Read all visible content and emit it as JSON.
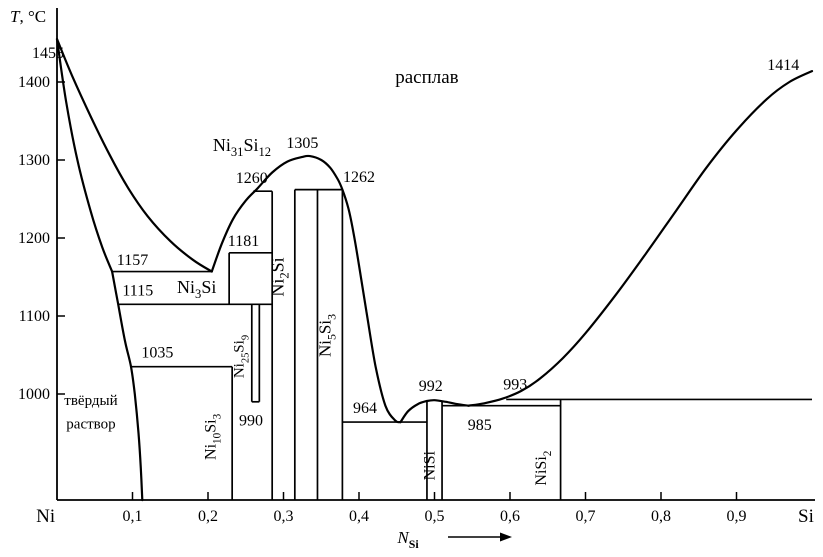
{
  "chart_data": {
    "type": "line",
    "kind": "binary-phase-diagram",
    "system": "Ni-Si",
    "y_axis": {
      "title_parts": [
        {
          "t": "T",
          "i": true
        },
        {
          "t": ", °C"
        }
      ],
      "ticks": [
        {
          "v": 1000,
          "label": "1000"
        },
        {
          "v": 1100,
          "label": "1100"
        },
        {
          "v": 1200,
          "label": "1200"
        },
        {
          "v": 1300,
          "label": "1300"
        },
        {
          "v": 1400,
          "label": "1400"
        }
      ],
      "bottom_T": 864
    },
    "x_axis": {
      "title_parts": [
        {
          "t": "N",
          "i": true
        },
        {
          "t": "Si",
          "sub": true,
          "b": true
        }
      ],
      "arrow": true,
      "end_labels": [
        {
          "t": "Ni",
          "n": -0.015
        },
        {
          "t": "Si",
          "n": 0.992
        }
      ],
      "ticks": [
        {
          "v": 0.1,
          "label": "0,1"
        },
        {
          "v": 0.2,
          "label": "0,2"
        },
        {
          "v": 0.3,
          "label": "0,3"
        },
        {
          "v": 0.4,
          "label": "0,4"
        },
        {
          "v": 0.5,
          "label": "0,5"
        },
        {
          "v": 0.6,
          "label": "0,6"
        },
        {
          "v": 0.7,
          "label": "0,7"
        },
        {
          "v": 0.8,
          "label": "0,8"
        },
        {
          "v": 0.9,
          "label": "0,9"
        }
      ]
    },
    "curves": [
      {
        "name": "liquidus-left",
        "points": [
          [
            0,
            1455
          ],
          [
            0.02,
            1408
          ],
          [
            0.045,
            1355
          ],
          [
            0.07,
            1306
          ],
          [
            0.095,
            1263
          ],
          [
            0.12,
            1228
          ],
          [
            0.15,
            1196
          ],
          [
            0.18,
            1172
          ],
          [
            0.205,
            1157
          ]
        ]
      },
      {
        "name": "solidus-left",
        "points": [
          [
            0,
            1455
          ],
          [
            0.012,
            1375
          ],
          [
            0.027,
            1300
          ],
          [
            0.045,
            1233
          ],
          [
            0.06,
            1188
          ],
          [
            0.073,
            1157
          ]
        ]
      },
      {
        "name": "solvus-left",
        "points": [
          [
            0.073,
            1157
          ],
          [
            0.081,
            1115
          ],
          [
            0.09,
            1068
          ],
          [
            0.098,
            1035
          ],
          [
            0.103,
            1000
          ],
          [
            0.108,
            950
          ],
          [
            0.111,
            905
          ],
          [
            0.113,
            864
          ]
        ]
      },
      {
        "name": "liquidus-dome",
        "points": [
          [
            0.205,
            1157
          ],
          [
            0.218,
            1192
          ],
          [
            0.233,
            1224
          ],
          [
            0.25,
            1248
          ],
          [
            0.266,
            1264
          ],
          [
            0.285,
            1284
          ],
          [
            0.305,
            1298
          ],
          [
            0.325,
            1304
          ],
          [
            0.335,
            1305
          ],
          [
            0.35,
            1300
          ],
          [
            0.362,
            1290
          ],
          [
            0.372,
            1275
          ],
          [
            0.378,
            1262
          ],
          [
            0.386,
            1238
          ],
          [
            0.393,
            1205
          ],
          [
            0.4,
            1165
          ],
          [
            0.41,
            1105
          ],
          [
            0.422,
            1035
          ],
          [
            0.435,
            985
          ],
          [
            0.448,
            966
          ],
          [
            0.455,
            964
          ]
        ]
      },
      {
        "name": "liquidus-nisi",
        "points": [
          [
            0.455,
            964
          ],
          [
            0.465,
            978
          ],
          [
            0.478,
            987
          ],
          [
            0.49,
            991
          ],
          [
            0.5,
            992
          ],
          [
            0.515,
            990
          ],
          [
            0.53,
            987
          ],
          [
            0.545,
            985
          ]
        ]
      },
      {
        "name": "liquidus-right",
        "points": [
          [
            0.545,
            985
          ],
          [
            0.565,
            988
          ],
          [
            0.59,
            994
          ],
          [
            0.615,
            1004
          ],
          [
            0.64,
            1020
          ],
          [
            0.67,
            1046
          ],
          [
            0.7,
            1078
          ],
          [
            0.74,
            1127
          ],
          [
            0.78,
            1180
          ],
          [
            0.82,
            1235
          ],
          [
            0.86,
            1290
          ],
          [
            0.9,
            1338
          ],
          [
            0.94,
            1378
          ],
          [
            0.97,
            1400
          ],
          [
            1,
            1414
          ]
        ]
      }
    ],
    "isotherms": [
      {
        "T": 1157,
        "n1": 0.073,
        "n2": 0.205
      },
      {
        "T": 1115,
        "n1": 0.081,
        "n2": 0.285
      },
      {
        "T": 1035,
        "n1": 0.098,
        "n2": 0.232
      },
      {
        "T": 1181,
        "n1": 0.228,
        "n2": 0.285
      },
      {
        "T": 1260,
        "n1": 0.26,
        "n2": 0.285
      },
      {
        "T": 1262,
        "n1": 0.315,
        "n2": 0.378
      },
      {
        "T": 990,
        "n1": 0.258,
        "n2": 0.268
      },
      {
        "T": 964,
        "n1": 0.378,
        "n2": 0.49
      },
      {
        "T": 985,
        "n1": 0.51,
        "n2": 0.667
      },
      {
        "T": 993,
        "n1": 0.595,
        "n2": 1.0
      }
    ],
    "compound_lines": [
      {
        "n": 0.228,
        "t1": 1181,
        "t2": 1115
      },
      {
        "n": 0.232,
        "t1": 1035,
        "t2": 864
      },
      {
        "n": 0.258,
        "t1": 1115,
        "t2": 990
      },
      {
        "n": 0.268,
        "t1": 1115,
        "t2": 990
      },
      {
        "n": 0.285,
        "t1": 1260,
        "t2": 864
      },
      {
        "n": 0.315,
        "t1": 1262,
        "t2": 864
      },
      {
        "n": 0.345,
        "t1": 1262,
        "t2": 864
      },
      {
        "n": 0.378,
        "t1": 1262,
        "t2": 864
      },
      {
        "n": 0.49,
        "t1": 991,
        "t2": 864
      },
      {
        "n": 0.51,
        "t1": 990,
        "t2": 864
      },
      {
        "n": 0.667,
        "t1": 993,
        "t2": 864
      }
    ],
    "point_labels": [
      {
        "text": "1455",
        "n": -0.012,
        "t": 1437
      },
      {
        "text": "1414",
        "n": 0.962,
        "t": 1422
      },
      {
        "text": "1157",
        "n": 0.1,
        "t": 1172
      },
      {
        "text": "1115",
        "n": 0.107,
        "t": 1133
      },
      {
        "text": "1035",
        "n": 0.133,
        "t": 1053
      },
      {
        "text": "1181",
        "n": 0.247,
        "t": 1196
      },
      {
        "text": "1260",
        "n": 0.258,
        "t": 1277
      },
      {
        "text": "1305",
        "n": 0.325,
        "t": 1322
      },
      {
        "text": "1262",
        "n": 0.4,
        "t": 1278
      },
      {
        "text": "990",
        "n": 0.257,
        "t": 966
      },
      {
        "text": "964",
        "n": 0.408,
        "t": 982
      },
      {
        "text": "992",
        "n": 0.495,
        "t": 1010
      },
      {
        "text": "985",
        "n": 0.56,
        "t": 960
      },
      {
        "text": "993",
        "n": 0.607,
        "t": 1012
      }
    ],
    "region_labels": [
      {
        "id": "melt",
        "parts": [
          {
            "t": "расплав"
          }
        ],
        "n": 0.49,
        "t": 1405,
        "size": 19
      },
      {
        "id": "solid-solution-line1",
        "parts": [
          {
            "t": "твёрдый"
          }
        ],
        "n": 0.045,
        "t": 992,
        "size": 15
      },
      {
        "id": "solid-solution-line2",
        "parts": [
          {
            "t": "раствор"
          }
        ],
        "n": 0.045,
        "t": 962,
        "size": 15
      },
      {
        "id": "ni3si",
        "parts": [
          {
            "t": "Ni"
          },
          {
            "t": "3",
            "sub": true
          },
          {
            "t": "Si"
          }
        ],
        "n": 0.185,
        "t": 1136,
        "size": 18
      },
      {
        "id": "ni31si12",
        "parts": [
          {
            "t": "Ni"
          },
          {
            "t": "31",
            "sub": true
          },
          {
            "t": "Si"
          },
          {
            "t": "12",
            "sub": true
          }
        ],
        "n": 0.245,
        "t": 1318,
        "size": 18
      },
      {
        "id": "ni2si",
        "parts": [
          {
            "t": "Ni"
          },
          {
            "t": "2",
            "sub": true
          },
          {
            "t": "Si"
          }
        ],
        "n": 0.3,
        "t": 1150,
        "size": 18,
        "rot": true
      },
      {
        "id": "ni5si3",
        "parts": [
          {
            "t": "Ni"
          },
          {
            "t": "5",
            "sub": true
          },
          {
            "t": "Si"
          },
          {
            "t": "3",
            "sub": true
          }
        ],
        "n": 0.362,
        "t": 1075,
        "size": 17,
        "rot": true
      },
      {
        "id": "ni25si9",
        "parts": [
          {
            "t": "Ni"
          },
          {
            "t": "25",
            "sub": true
          },
          {
            "t": "Si"
          },
          {
            "t": "9",
            "sub": true
          }
        ],
        "n": 0.247,
        "t": 1048,
        "size": 15,
        "rot": true
      },
      {
        "id": "ni10si3",
        "parts": [
          {
            "t": "Ni"
          },
          {
            "t": "10",
            "sub": true
          },
          {
            "t": "Si"
          },
          {
            "t": "3",
            "sub": true
          }
        ],
        "n": 0.21,
        "t": 945,
        "size": 16,
        "rot": true
      },
      {
        "id": "nisi",
        "parts": [
          {
            "t": "NiSi"
          }
        ],
        "n": 0.5,
        "t": 908,
        "size": 16,
        "rot": true
      },
      {
        "id": "nisi2",
        "parts": [
          {
            "t": "NiSi"
          },
          {
            "t": "2",
            "sub": true
          }
        ],
        "n": 0.648,
        "t": 905,
        "size": 16,
        "rot": true
      }
    ]
  }
}
